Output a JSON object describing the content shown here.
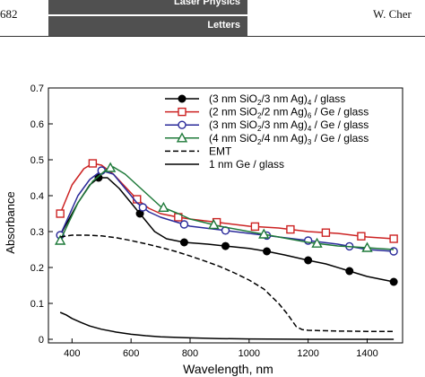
{
  "header": {
    "page_number": "682",
    "journal_line1": "Laser Physics",
    "journal_line2": "Letters",
    "author": "W. Cher"
  },
  "chart_data": {
    "type": "line",
    "title": "",
    "xlabel": "Wavelength, nm",
    "ylabel": "Absorbance",
    "xlim": [
      320,
      1520
    ],
    "ylim": [
      -0.01,
      0.7
    ],
    "xticks": [
      400,
      600,
      800,
      1000,
      1200,
      1400
    ],
    "yticks": [
      0,
      0.1,
      0.2,
      0.3,
      0.4,
      0.5,
      0.6,
      0.7
    ],
    "ytick_labels": [
      "0",
      "0.1",
      "0.2",
      "0.3",
      "0.4",
      "0.5",
      "0.6",
      "0.7"
    ],
    "grid": false,
    "legend_position": "top-right",
    "series": [
      {
        "legend": [
          "(3 nm SiO",
          "2",
          "/3 nm Ag)",
          "4",
          " / glass"
        ],
        "color": "#000000",
        "marker": "filled-circle",
        "dash": "solid",
        "x": [
          360,
          420,
          460,
          490,
          520,
          560,
          600,
          640,
          680,
          720,
          780,
          860,
          940,
          1000,
          1060,
          1120,
          1200,
          1260,
          1340,
          1400,
          1460,
          1490
        ],
        "y": [
          0.29,
          0.38,
          0.43,
          0.45,
          0.45,
          0.42,
          0.38,
          0.34,
          0.3,
          0.28,
          0.27,
          0.265,
          0.258,
          0.253,
          0.245,
          0.235,
          0.22,
          0.21,
          0.19,
          0.175,
          0.165,
          0.16
        ],
        "marker_x": [
          360,
          490,
          630,
          780,
          920,
          1060,
          1200,
          1340,
          1490
        ]
      },
      {
        "legend": [
          "(2 nm SiO",
          "2",
          "/2 nm Ag)",
          "6",
          " / Ge / glass"
        ],
        "color": "#cc2222",
        "marker": "open-square",
        "dash": "solid",
        "x": [
          360,
          400,
          440,
          470,
          500,
          540,
          580,
          620,
          660,
          700,
          760,
          800,
          900,
          1000,
          1100,
          1200,
          1300,
          1400,
          1490
        ],
        "y": [
          0.35,
          0.43,
          0.475,
          0.49,
          0.485,
          0.46,
          0.425,
          0.39,
          0.365,
          0.35,
          0.34,
          0.335,
          0.325,
          0.315,
          0.31,
          0.3,
          0.295,
          0.285,
          0.28
        ],
        "marker_x": [
          360,
          470,
          620,
          760,
          890,
          1020,
          1140,
          1260,
          1380,
          1490
        ]
      },
      {
        "legend": [
          "(3 nm SiO",
          "2",
          "/3 nm Ag)",
          "4",
          " / Ge / glass"
        ],
        "color": "#2a2a9a",
        "marker": "open-circle",
        "dash": "solid",
        "x": [
          360,
          420,
          460,
          500,
          540,
          580,
          620,
          660,
          700,
          760,
          800,
          900,
          1000,
          1100,
          1200,
          1300,
          1400,
          1490
        ],
        "y": [
          0.29,
          0.4,
          0.445,
          0.47,
          0.46,
          0.42,
          0.38,
          0.355,
          0.34,
          0.325,
          0.315,
          0.305,
          0.295,
          0.285,
          0.275,
          0.265,
          0.25,
          0.245
        ],
        "marker_x": [
          360,
          500,
          640,
          780,
          920,
          1060,
          1200,
          1340,
          1490
        ]
      },
      {
        "legend": [
          "(4 nm SiO",
          "2",
          "/4 nm Ag)",
          "3",
          " / Ge / glass"
        ],
        "color": "#1f7a3a",
        "marker": "open-triangle",
        "dash": "solid",
        "x": [
          360,
          420,
          470,
          520,
          540,
          580,
          620,
          660,
          700,
          760,
          800,
          900,
          1000,
          1100,
          1200,
          1300,
          1400,
          1490
        ],
        "y": [
          0.275,
          0.38,
          0.44,
          0.475,
          0.48,
          0.46,
          0.43,
          0.4,
          0.37,
          0.35,
          0.335,
          0.315,
          0.3,
          0.285,
          0.27,
          0.26,
          0.255,
          0.25
        ],
        "marker_x": [
          360,
          530,
          710,
          880,
          1050,
          1230,
          1400
        ]
      },
      {
        "legend": [
          "EMT"
        ],
        "color": "#000000",
        "marker": "none",
        "dash": "dashed",
        "x": [
          360,
          400,
          450,
          500,
          550,
          600,
          650,
          700,
          750,
          800,
          850,
          900,
          950,
          1000,
          1050,
          1100,
          1130,
          1160,
          1180,
          1200,
          1250,
          1300,
          1400,
          1490
        ],
        "y": [
          0.285,
          0.29,
          0.29,
          0.288,
          0.283,
          0.275,
          0.266,
          0.256,
          0.245,
          0.232,
          0.218,
          0.203,
          0.185,
          0.165,
          0.14,
          0.1,
          0.07,
          0.035,
          0.027,
          0.025,
          0.024,
          0.023,
          0.022,
          0.022
        ]
      },
      {
        "legend": [
          "1 nm Ge / glass"
        ],
        "color": "#000000",
        "marker": "none",
        "dash": "solid",
        "x": [
          360,
          380,
          400,
          430,
          460,
          500,
          550,
          600,
          650,
          700,
          800,
          900,
          1000,
          1200,
          1400,
          1490
        ],
        "y": [
          0.075,
          0.068,
          0.058,
          0.047,
          0.037,
          0.028,
          0.02,
          0.014,
          0.01,
          0.007,
          0.004,
          0.002,
          0.001,
          0.0,
          0.0,
          0.0
        ]
      }
    ]
  }
}
